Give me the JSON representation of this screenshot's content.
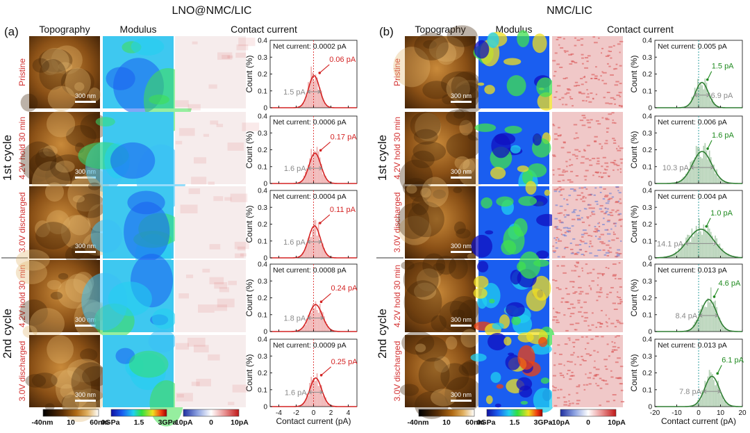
{
  "panels": [
    {
      "label": "(a)",
      "title": "LNO@NMC/LIC",
      "col_headers": [
        "Topography",
        "Modulus",
        "Contact current"
      ],
      "cycles": [
        "1st cycle",
        "2nd cycle"
      ],
      "row_labels": [
        "Pristine",
        "4.2V hold 30 min",
        "3.0V discharged",
        "4.2V hold 30 min",
        "3.0V discharged"
      ],
      "scalebar": "300 nm",
      "colorbars": {
        "topography": [
          "-40nm",
          "10",
          "60nm"
        ],
        "modulus": [
          "0GPa",
          "1.5",
          "3GPa"
        ],
        "current": [
          "-10pA",
          "0",
          "10pA"
        ]
      },
      "colors": {
        "fit": "#d32222",
        "annotation": "#d32222",
        "fwhm": "#8a8a8a",
        "modulus_base": "#3ec8f0",
        "current_base": "#f6ecec"
      }
    },
    {
      "label": "(b)",
      "title": "NMC/LIC",
      "col_headers": [
        "Topography",
        "Modulus",
        "Contact current"
      ],
      "cycles": [
        "1st cycle",
        "2nd cycle"
      ],
      "row_labels": [
        "Pristine",
        "4.2V hold 30 min",
        "3.0V discharged",
        "4.2V hold 30 min",
        "3.0V discharged"
      ],
      "scalebar": "300 nm",
      "colorbars": {
        "topography": [
          "-40nm",
          "10",
          "60nm"
        ],
        "modulus": [
          "0GPa",
          "1.5",
          "3GPa"
        ],
        "current": [
          "-10pA",
          "0",
          "10pA"
        ]
      },
      "colors": {
        "fit": "#2e7d32",
        "annotation": "#1e8a1e",
        "fwhm": "#8a8a8a",
        "modulus_base": "#1a5ef0",
        "current_base": "#f0c8c8"
      }
    }
  ],
  "chart_data": [
    {
      "type": "area",
      "panel": "(a)",
      "xlabel": "Contact current (pA)",
      "ylabel": "Count (%)",
      "xlim": [
        -5,
        5
      ],
      "ylim": [
        0,
        0.4
      ],
      "xticks": [
        -4,
        -2,
        0,
        2,
        4
      ],
      "yticks": [
        0.0,
        0.1,
        0.2,
        0.3,
        0.4
      ],
      "reference_line_x": 0,
      "series": [
        {
          "net_current": "Net current: 0.0002 pA",
          "center": 0.06,
          "center_label": "0.06 pA",
          "fwhm": 1.5,
          "fwhm_label": "1.5 pA",
          "peak": 0.19
        },
        {
          "net_current": "Net current: 0.0006 pA",
          "center": 0.17,
          "center_label": "0.17 pA",
          "fwhm": 1.6,
          "fwhm_label": "1.6 pA",
          "peak": 0.18
        },
        {
          "net_current": "Net current: 0.0004 pA",
          "center": 0.11,
          "center_label": "0.11 pA",
          "fwhm": 1.6,
          "fwhm_label": "1.6 pA",
          "peak": 0.19
        },
        {
          "net_current": "Net current: 0.0008 pA",
          "center": 0.24,
          "center_label": "0.24 pA",
          "fwhm": 1.8,
          "fwhm_label": "1.8 pA",
          "peak": 0.16
        },
        {
          "net_current": "Net current: 0.0009 pA",
          "center": 0.25,
          "center_label": "0.25 pA",
          "fwhm": 1.6,
          "fwhm_label": "1.6 pA",
          "peak": 0.17
        }
      ]
    },
    {
      "type": "area",
      "panel": "(b)",
      "xlabel": "Contact current (pA)",
      "ylabel": "Count (%)",
      "xlim": [
        -20,
        20
      ],
      "ylim": [
        0,
        0.4
      ],
      "xticks": [
        -20,
        -10,
        0,
        10,
        20
      ],
      "yticks": [
        0.0,
        0.1,
        0.2,
        0.3,
        0.4
      ],
      "reference_line_x": 0,
      "series": [
        {
          "net_current": "Net current: 0.005 pA",
          "center": 1.5,
          "center_label": "1.5 pA",
          "fwhm": 6.9,
          "fwhm_label": "6.9 pA",
          "peak": 0.15
        },
        {
          "net_current": "Net current: 0.006 pA",
          "center": 1.6,
          "center_label": "1.6 pA",
          "fwhm": 10.3,
          "fwhm_label": "10.3 pA",
          "peak": 0.19
        },
        {
          "net_current": "Net current: 0.004 pA",
          "center": 1.0,
          "center_label": "1.0 pA",
          "fwhm": 14.1,
          "fwhm_label": "14.1 pA",
          "peak": 0.17
        },
        {
          "net_current": "Net current: 0.013 pA",
          "center": 4.6,
          "center_label": "4.6 pA",
          "fwhm": 8.4,
          "fwhm_label": "8.4 pA",
          "peak": 0.19
        },
        {
          "net_current": "Net current: 0.013 pA",
          "center": 6.1,
          "center_label": "6.1 pA",
          "fwhm": 7.8,
          "fwhm_label": "7.8 pA",
          "peak": 0.18
        }
      ]
    }
  ]
}
